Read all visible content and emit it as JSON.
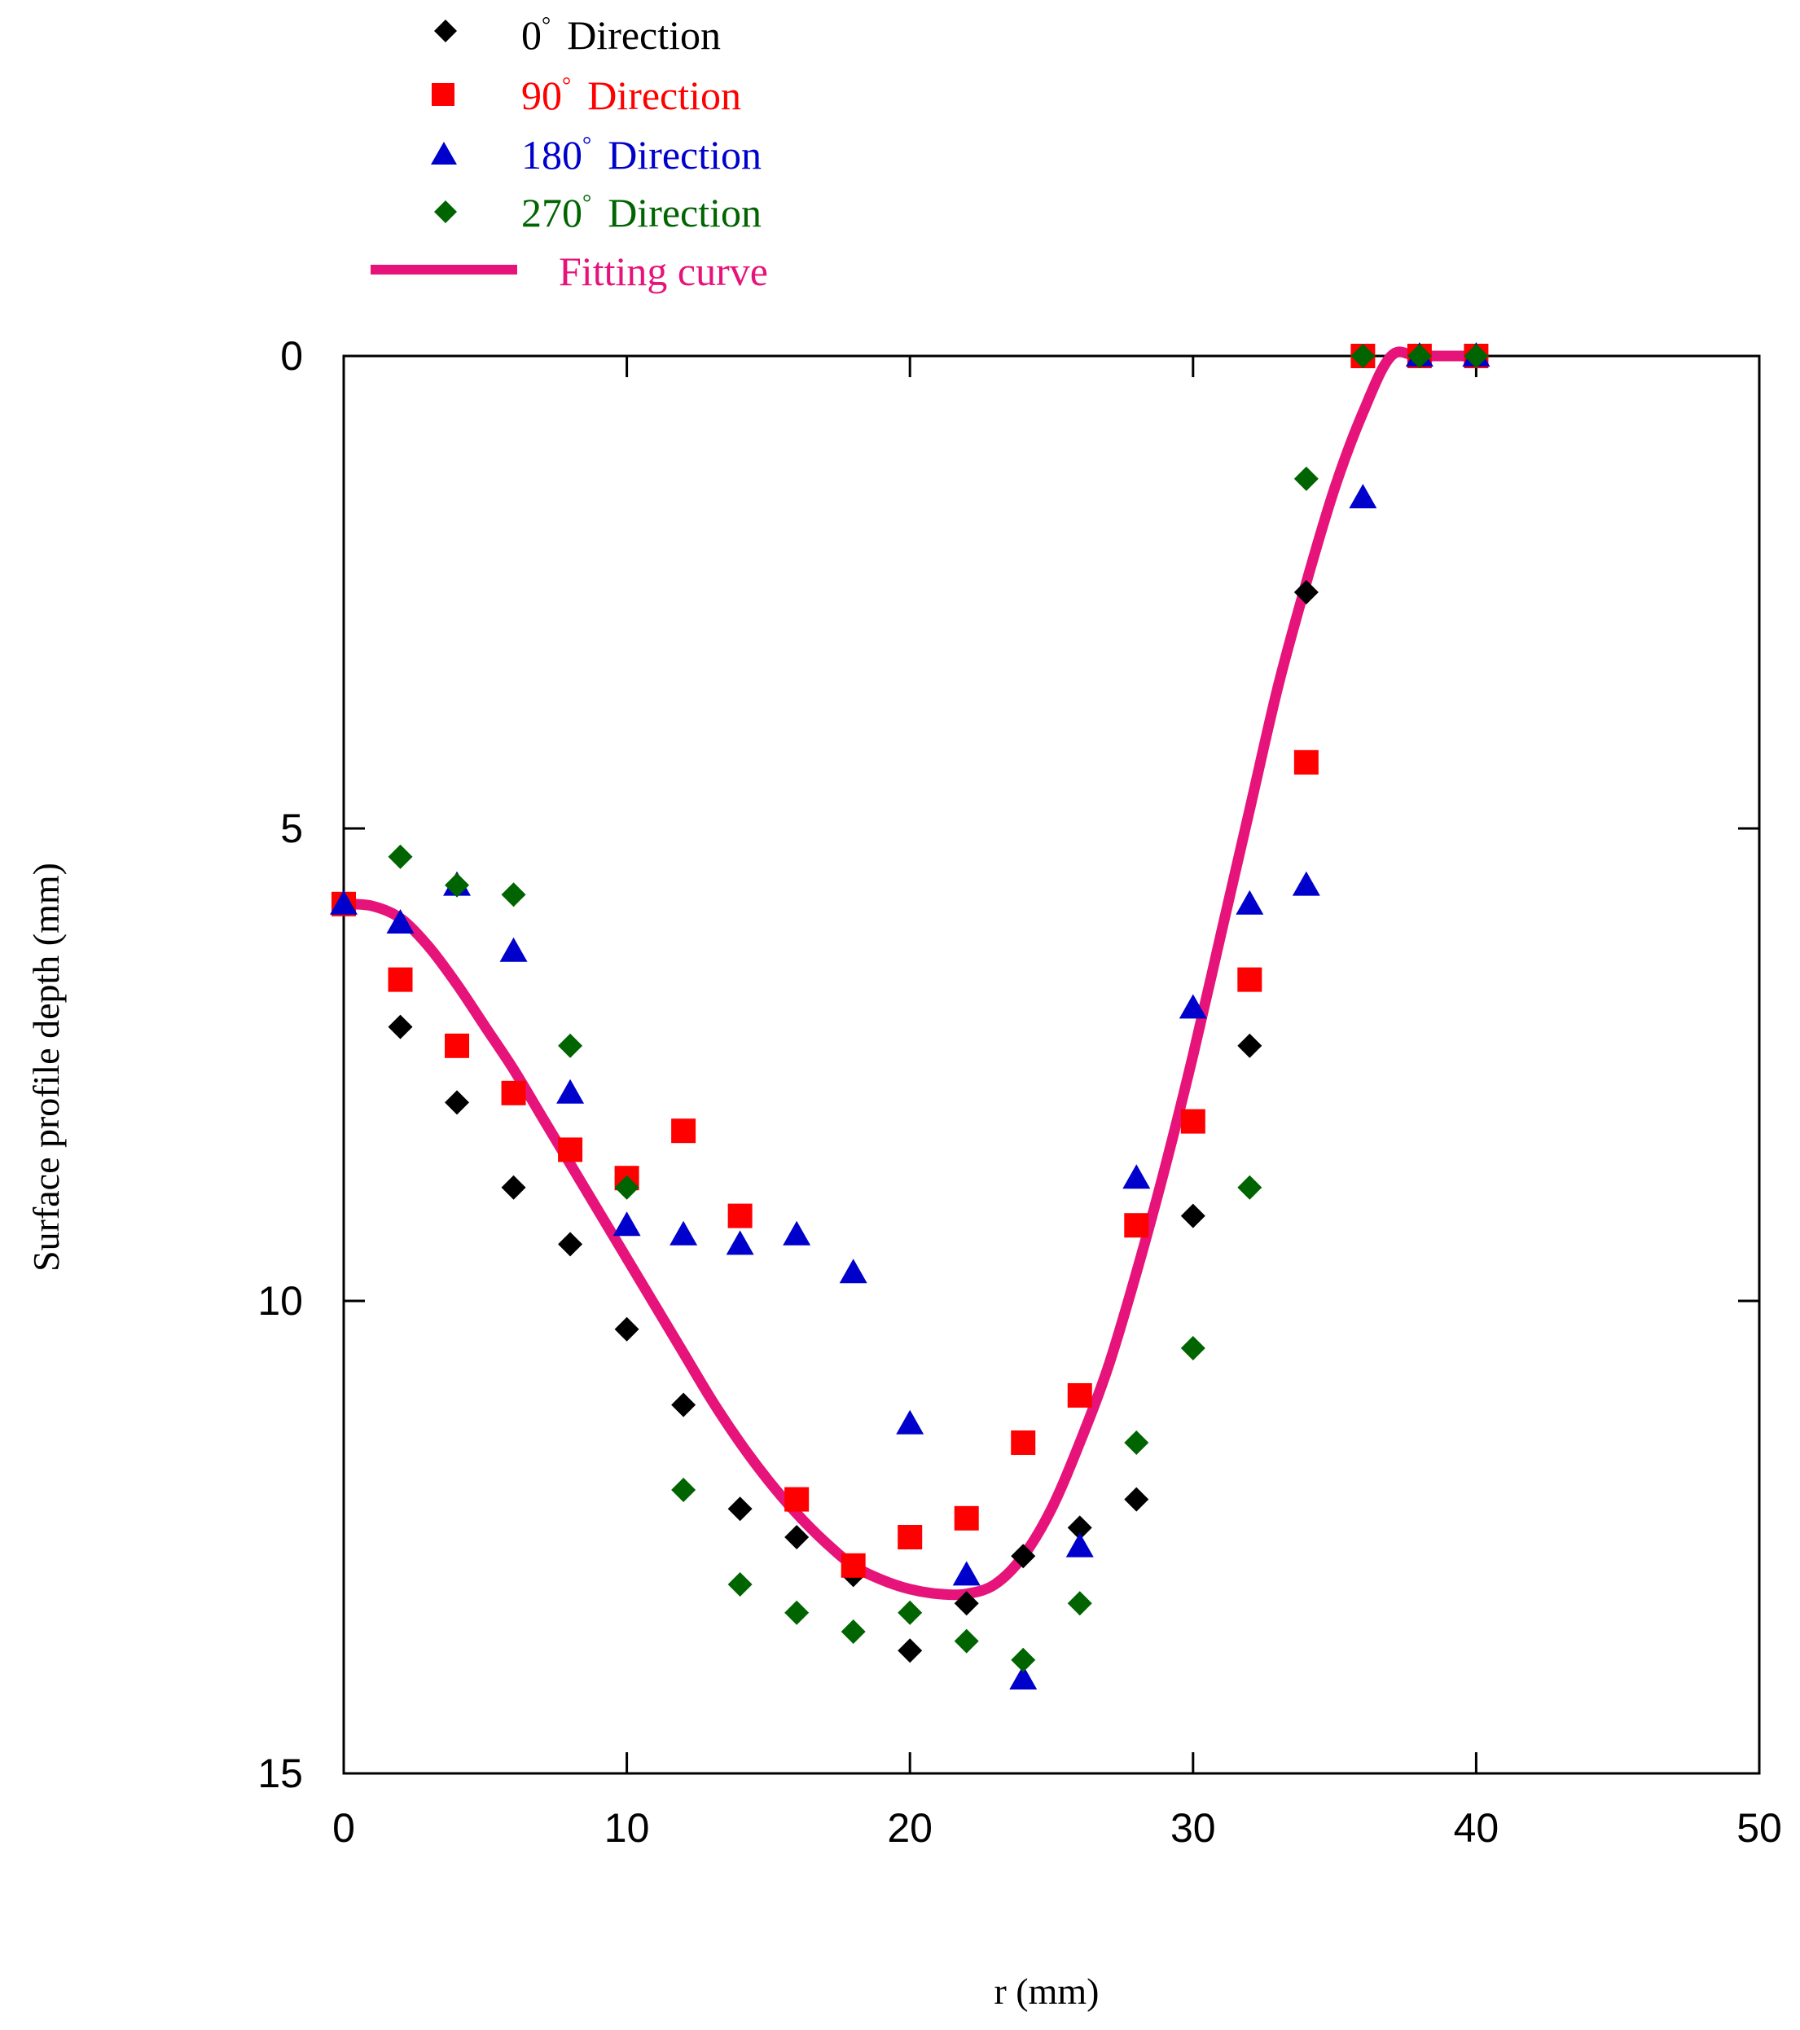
{
  "chart_data": {
    "type": "scatter",
    "title": "",
    "xlabel": "r (mm)",
    "ylabel": "Surface profile depth (mm)",
    "xlim": [
      0,
      50
    ],
    "ylim": [
      0,
      15
    ],
    "y_inverted": true,
    "x_ticks": [
      "0",
      "10",
      "20",
      "30",
      "40",
      "50"
    ],
    "y_ticks": [
      "0",
      "5",
      "10",
      "15"
    ],
    "grid": false,
    "legend_position": "top-left",
    "series": [
      {
        "name": "0° Direction",
        "legend_num": "0",
        "legend_word": "Direction",
        "marker": "diamond",
        "color": "#000000",
        "x": [
          0,
          2,
          4,
          6,
          8,
          10,
          12,
          14,
          16,
          18,
          20,
          22,
          24,
          26,
          28,
          30,
          32,
          34,
          36,
          38,
          40
        ],
        "y": [
          5.8,
          7.1,
          7.9,
          8.8,
          9.4,
          10.3,
          11.1,
          12.2,
          12.5,
          12.9,
          13.7,
          13.2,
          12.7,
          12.4,
          12.1,
          9.1,
          7.3,
          2.5,
          0,
          0,
          0
        ]
      },
      {
        "name": "90° Direction",
        "legend_num": "90",
        "legend_word": "Direction",
        "marker": "square",
        "color": "#ff0000",
        "x": [
          0,
          2,
          4,
          6,
          8,
          10,
          12,
          14,
          16,
          18,
          20,
          22,
          24,
          26,
          28,
          30,
          32,
          34,
          36,
          38,
          40
        ],
        "y": [
          5.8,
          6.6,
          7.3,
          7.8,
          8.4,
          8.7,
          8.2,
          9.1,
          12.1,
          12.8,
          12.5,
          12.3,
          11.5,
          11.0,
          9.2,
          8.1,
          6.6,
          4.3,
          0,
          0,
          0
        ]
      },
      {
        "name": "180° Direction",
        "legend_num": "180",
        "legend_word": "Direction",
        "marker": "triangle",
        "color": "#0000cc",
        "x": [
          0,
          2,
          4,
          6,
          8,
          10,
          12,
          14,
          16,
          18,
          20,
          22,
          24,
          26,
          28,
          30,
          32,
          34,
          36,
          38,
          40
        ],
        "y": [
          5.8,
          6.0,
          5.6,
          6.3,
          7.8,
          9.2,
          9.3,
          9.4,
          9.3,
          9.7,
          11.3,
          12.9,
          14.0,
          12.6,
          8.7,
          6.9,
          5.8,
          5.6,
          1.5,
          0,
          0
        ]
      },
      {
        "name": "270° Direction",
        "legend_num": "270",
        "legend_word": "Direction",
        "marker": "diamond",
        "color": "#006400",
        "x": [
          2,
          4,
          6,
          8,
          10,
          12,
          14,
          16,
          18,
          20,
          22,
          24,
          26,
          28,
          30,
          32,
          34,
          36,
          38,
          40
        ],
        "y": [
          5.3,
          5.6,
          5.7,
          7.3,
          8.8,
          12.0,
          13.0,
          13.3,
          13.5,
          13.3,
          13.6,
          13.8,
          13.2,
          11.5,
          10.5,
          8.8,
          1.3,
          0,
          0,
          0
        ]
      }
    ],
    "fitting_curve": {
      "name": "Fitting curve",
      "color": "#e6147a",
      "x": [
        0,
        1,
        2,
        3,
        4,
        5,
        6,
        7,
        8,
        9,
        10,
        11,
        12,
        13,
        14,
        15,
        16,
        17,
        18,
        19,
        20,
        21,
        22,
        23,
        24,
        25,
        26,
        27,
        28,
        29,
        30,
        31,
        32,
        33,
        34,
        35,
        36,
        37,
        38,
        40
      ],
      "y": [
        5.8,
        5.82,
        5.95,
        6.25,
        6.65,
        7.1,
        7.55,
        8.05,
        8.55,
        9.05,
        9.55,
        10.05,
        10.55,
        11.05,
        11.5,
        11.9,
        12.25,
        12.55,
        12.8,
        12.95,
        13.05,
        13.1,
        13.1,
        13.0,
        12.7,
        12.2,
        11.5,
        10.7,
        9.7,
        8.6,
        7.4,
        6.1,
        4.8,
        3.5,
        2.4,
        1.4,
        0.6,
        0.0,
        0.0,
        0.0
      ]
    }
  }
}
